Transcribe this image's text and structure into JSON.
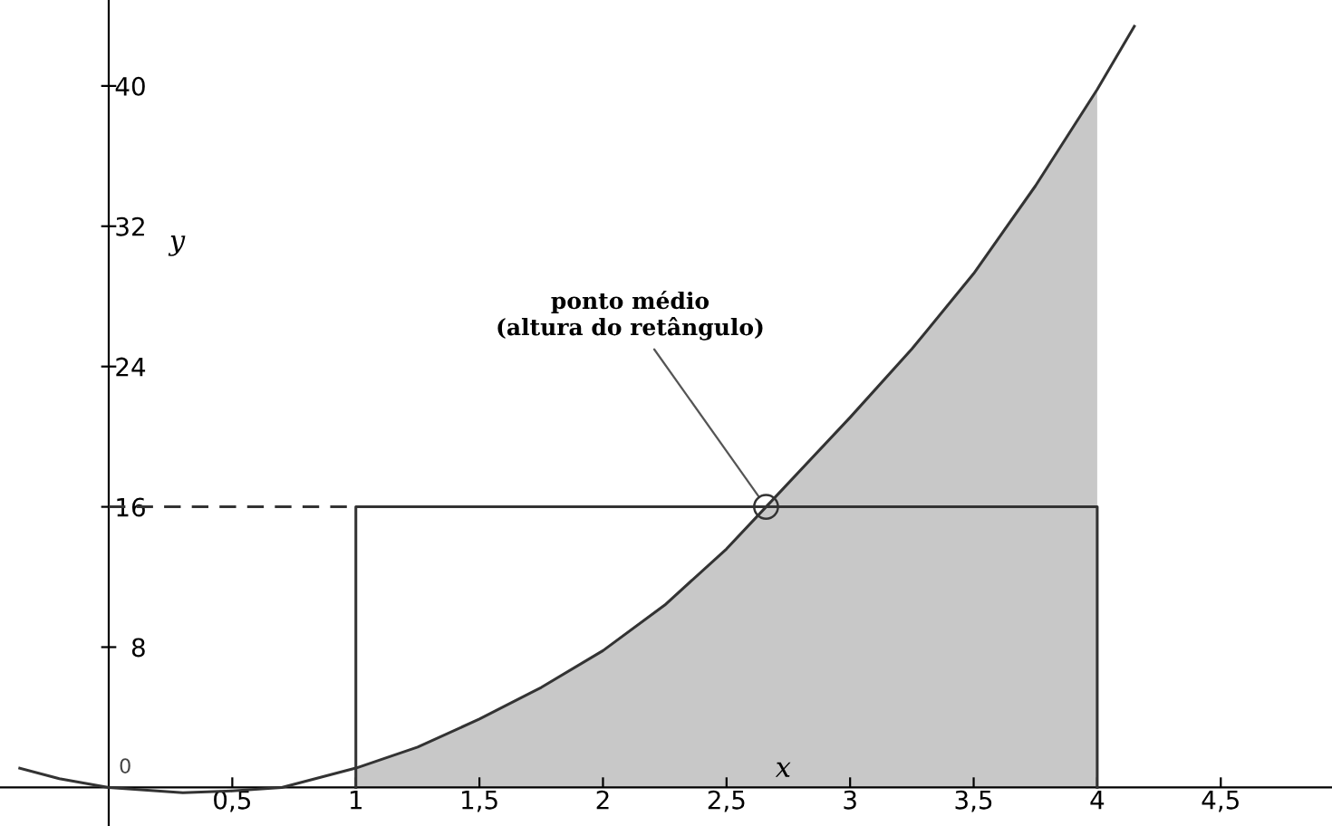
{
  "chart_data": {
    "type": "line",
    "xlabel": "x",
    "ylabel": "y",
    "xlim": [
      -0.44,
      4.95
    ],
    "ylim": [
      -2.2,
      44.9
    ],
    "xticks": [
      {
        "value": 0.5,
        "label": "0,5"
      },
      1,
      {
        "value": 1.5,
        "label": "1,5"
      },
      2,
      {
        "value": 2.5,
        "label": "2,5"
      },
      3,
      {
        "value": 3.5,
        "label": "3,5"
      },
      4,
      {
        "value": 4.5,
        "label": "4,5"
      }
    ],
    "yticks": [
      8,
      16,
      24,
      32,
      40
    ],
    "grid": false,
    "legend": false,
    "series": [
      {
        "type": "area",
        "color": "#c8c8c8",
        "x": [
          1,
          1.25,
          1.5,
          1.75,
          2,
          2.25,
          2.5,
          2.66,
          3,
          3.25,
          3.5,
          3.75,
          4
        ],
        "values": [
          1.1,
          2.3,
          3.9,
          5.7,
          7.8,
          10.4,
          13.6,
          16,
          21.1,
          25,
          29.3,
          34.3,
          39.8
        ]
      },
      {
        "color": "#333333",
        "x": [
          1,
          1,
          4,
          4
        ],
        "values": [
          0,
          16,
          16,
          0
        ]
      },
      {
        "color": "#333333",
        "line_style": "dashed",
        "x": [
          0,
          1
        ],
        "values": [
          16,
          16
        ]
      },
      {
        "color": "#333333",
        "x": [
          -0.36,
          -0.2,
          0,
          0.3,
          0.5,
          0.7,
          1,
          1.25,
          1.5,
          1.75,
          2,
          2.25,
          2.5,
          2.66,
          3,
          3.25,
          3.5,
          3.75,
          4,
          4.15
        ],
        "values": [
          1.1,
          0.5,
          0,
          -0.3,
          -0.2,
          0,
          1.1,
          2.3,
          3.9,
          5.7,
          7.8,
          10.4,
          13.6,
          16,
          21.1,
          25,
          29.3,
          34.3,
          39.8,
          43.4
        ]
      },
      {
        "type": "scatter",
        "color": "#333333",
        "marker": "circle",
        "x": [
          2.66
        ],
        "values": [
          16
        ]
      }
    ],
    "annotations": [
      {
        "text": "0",
        "x": 0,
        "y": 0
      },
      {
        "text": "ponto médio\n(altura do retângulo)",
        "x": 2.66,
        "y": 16
      }
    ]
  }
}
